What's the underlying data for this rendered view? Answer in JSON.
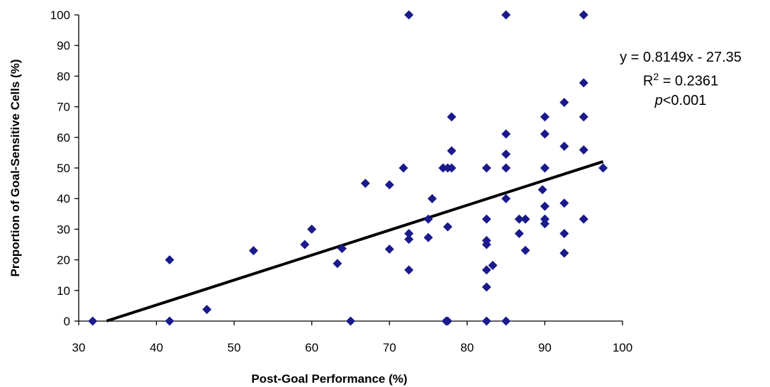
{
  "chart_data": {
    "type": "scatter",
    "xlabel": "Post-Goal Performance (%)",
    "ylabel": "Proportion of Goal-Sensitive Cells (%)",
    "xlim": [
      30,
      100
    ],
    "ylim": [
      0,
      100
    ],
    "xticks": [
      30,
      40,
      50,
      60,
      70,
      80,
      90,
      100
    ],
    "yticks": [
      0,
      10,
      20,
      30,
      40,
      50,
      60,
      70,
      80,
      90,
      100
    ],
    "grid": false,
    "legend": "none",
    "marker_color": "#1a1a8c",
    "line_color": "#000000",
    "points": [
      [
        31.8,
        0
      ],
      [
        41.7,
        20
      ],
      [
        41.7,
        0
      ],
      [
        46.5,
        3.8
      ],
      [
        52.5,
        23
      ],
      [
        59.1,
        25
      ],
      [
        60.0,
        30
      ],
      [
        63.3,
        18.8
      ],
      [
        63.9,
        23.7
      ],
      [
        65.0,
        0
      ],
      [
        66.9,
        45
      ],
      [
        70.0,
        44.5
      ],
      [
        70.0,
        23.5
      ],
      [
        71.8,
        50
      ],
      [
        72.5,
        28.6
      ],
      [
        72.5,
        26.7
      ],
      [
        72.5,
        16.7
      ],
      [
        72.5,
        100
      ],
      [
        75.0,
        33.3
      ],
      [
        75.0,
        27.3
      ],
      [
        75.5,
        40
      ],
      [
        76.9,
        50
      ],
      [
        77.3,
        0
      ],
      [
        77.5,
        0
      ],
      [
        77.5,
        30.8
      ],
      [
        77.5,
        50
      ],
      [
        78.0,
        50
      ],
      [
        78.0,
        55.6
      ],
      [
        78.0,
        66.7
      ],
      [
        82.5,
        50
      ],
      [
        82.5,
        33.3
      ],
      [
        82.5,
        26.3
      ],
      [
        82.5,
        25
      ],
      [
        82.5,
        16.7
      ],
      [
        82.5,
        11.1
      ],
      [
        82.5,
        0
      ],
      [
        83.3,
        18.2
      ],
      [
        85.0,
        100
      ],
      [
        85.0,
        61.1
      ],
      [
        85.0,
        54.5
      ],
      [
        85.0,
        50
      ],
      [
        85.0,
        40
      ],
      [
        85.0,
        0
      ],
      [
        86.7,
        33.3
      ],
      [
        86.7,
        28.6
      ],
      [
        87.5,
        33.3
      ],
      [
        87.5,
        23.1
      ],
      [
        89.7,
        42.9
      ],
      [
        90.0,
        66.7
      ],
      [
        90.0,
        61.1
      ],
      [
        90.0,
        50
      ],
      [
        90.0,
        37.5
      ],
      [
        90.0,
        33.3
      ],
      [
        90.0,
        31.8
      ],
      [
        92.5,
        71.4
      ],
      [
        92.5,
        57.1
      ],
      [
        92.5,
        38.5
      ],
      [
        92.5,
        28.6
      ],
      [
        92.5,
        22.2
      ],
      [
        95.0,
        100
      ],
      [
        95.0,
        77.8
      ],
      [
        95.0,
        66.7
      ],
      [
        95.0,
        55.9
      ],
      [
        95.0,
        33.3
      ],
      [
        97.5,
        50
      ]
    ],
    "trendline": {
      "slope": 0.8149,
      "intercept": -27.35,
      "x_range": [
        33.6,
        97.5
      ]
    },
    "annotations": {
      "equation": "y = 0.8149x - 27.35",
      "r2_prefix": "R",
      "r2_sup": "2",
      "r2_value": " = 0.2361",
      "p_symbol": "p",
      "p_value": "<0.001"
    }
  }
}
